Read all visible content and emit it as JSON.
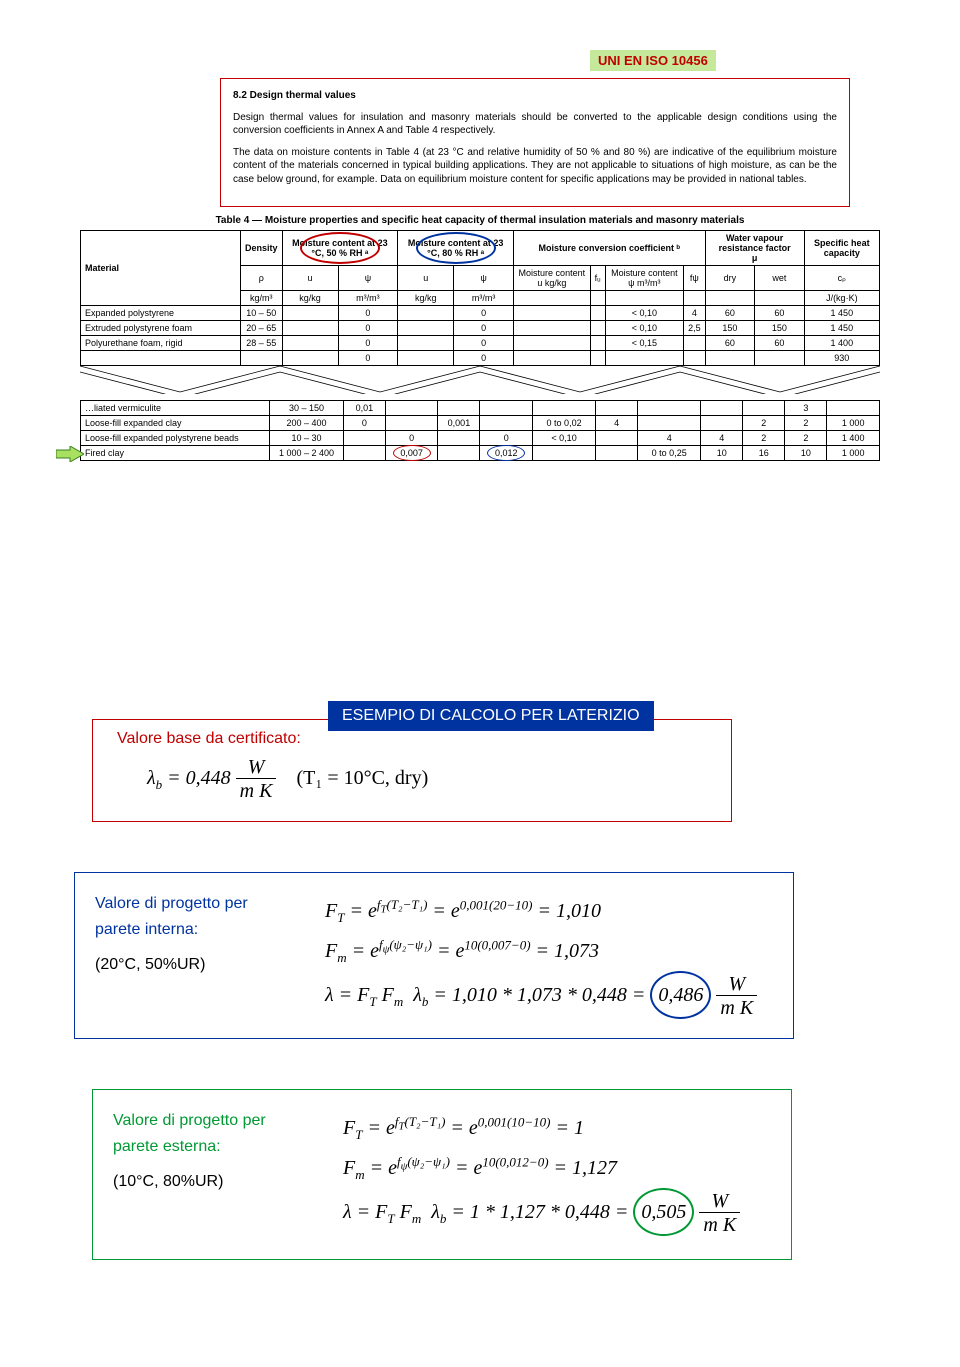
{
  "badge": "UNI EN ISO 10456",
  "section": {
    "heading": "8.2   Design thermal values",
    "p1": "Design thermal values for insulation and masonry materials should be converted to the applicable design conditions using the conversion coefficients in Annex A and Table 4 respectively.",
    "p2": "The data on moisture contents in Table 4 (at 23 °C and relative humidity of 50 % and 80 %) are indicative of the equilibrium moisture content of the materials concerned in typical building applications. They are not applicable to situations of high moisture, as can be the case below ground, for example. Data on equilibrium moisture content for specific applications may be provided in national tables."
  },
  "table4_title": "Table 4 — Moisture properties and specific heat capacity of thermal insulation materials and masonry materials",
  "th": {
    "material": "Material",
    "density": "Density",
    "m50": "Moisture content at 23 °C, 50 % RH ᵃ",
    "m80": "Moisture content at 23 °C, 80 % RH ᵃ",
    "mcc": "Moisture conversion coefficient ᵇ",
    "wvrf": "Water vapour resistance factor",
    "mu": "μ",
    "shc": "Specific heat capacity",
    "rho": "ρ",
    "rho_u": "kg/m³",
    "u": "u",
    "u_u": "kg/kg",
    "psi": "ψ",
    "psi_u": "m³/m³",
    "mcu": "Moisture content u kg/kg",
    "fu": "fᵤ",
    "mcpsi": "Moisture content ψ m³/m³",
    "fp": "fψ",
    "dry": "dry",
    "wet": "wet",
    "cp": "cₚ",
    "cp_u": "J/(kg·K)"
  },
  "rows1": [
    {
      "mat": "Expanded polystyrene",
      "den": "10 – 50",
      "u": "",
      "psi": "0",
      "u2": "",
      "psi2": "0",
      "mcu": "",
      "fu": "",
      "mcpsi": "< 0,10",
      "fp": "4",
      "dry": "60",
      "wet": "60",
      "cp": "1 450"
    },
    {
      "mat": "Extruded polystyrene foam",
      "den": "20 – 65",
      "u": "",
      "psi": "0",
      "u2": "",
      "psi2": "0",
      "mcu": "",
      "fu": "",
      "mcpsi": "< 0,10",
      "fp": "2,5",
      "dry": "150",
      "wet": "150",
      "cp": "1 450"
    },
    {
      "mat": "Polyurethane foam, rigid",
      "den": "28 – 55",
      "u": "",
      "psi": "0",
      "u2": "",
      "psi2": "0",
      "mcu": "",
      "fu": "",
      "mcpsi": "< 0,15",
      "fp": "",
      "dry": "60",
      "wet": "60",
      "cp": "1 400"
    },
    {
      "mat": "",
      "den": "",
      "u": "",
      "psi": "0",
      "u2": "",
      "psi2": "0",
      "mcu": "",
      "fu": "",
      "mcpsi": "",
      "fp": "",
      "dry": "",
      "wet": "",
      "cp": "930"
    }
  ],
  "rows2": [
    {
      "mat": "…liated vermiculite",
      "den": "30 – 150",
      "u": "0,01",
      "psi": "",
      "u2": "",
      "psi2": "",
      "mcu": "",
      "fu": "",
      "mcpsi": "",
      "fp": "",
      "dry": "",
      "wet": "3",
      "cp": ""
    },
    {
      "mat": "Loose-fill expanded clay",
      "den": "200 – 400",
      "u": "0",
      "psi": "",
      "u2": "0,001",
      "psi2": "",
      "mcu": "0 to 0,02",
      "fu": "4",
      "mcpsi": "",
      "fp": "",
      "dry": "2",
      "wet": "2",
      "cp": "1 000"
    },
    {
      "mat": "Loose-fill expanded polystyrene beads",
      "den": "10 – 30",
      "u": "",
      "psi": "0",
      "u2": "",
      "psi2": "0",
      "mcu": "< 0,10",
      "fu": "",
      "mcpsi": "4",
      "fp": "4",
      "dry": "2",
      "wet": "2",
      "cp": "1 400"
    },
    {
      "mat": "Fired clay",
      "den": "1 000 – 2 400",
      "u": "",
      "psi": "0,007",
      "u2": "",
      "psi2": "0,012",
      "mcu": "",
      "fu": "",
      "mcpsi": "0 to 0,25",
      "fp": "10",
      "dry": "16",
      "wet": "10",
      "cp": "1 000",
      "hl_psi": "red",
      "hl_psi2": "blue"
    }
  ],
  "calc": {
    "banner": "ESEMPIO DI CALCOLO PER LATERIZIO",
    "base": {
      "title": "Valore base da certificato:",
      "lambda_b": "0,448",
      "unit_num": "W",
      "unit_den": "m K",
      "cond": "(T₁ = 10°C, dry)"
    },
    "interna": {
      "title1": "Valore di progetto per",
      "title2": "parete interna:",
      "cond": "(20°C, 50%UR)",
      "ft": "Fₜ = e^{fₜ(T₂−T₁)} = e^{0,001(20−10)} = 1,010",
      "fm": "Fₘ = e^{fψ(ψ₂−ψ₁)} = e^{10(0,007−0)} = 1,073",
      "lambda_pre": "λ = Fₜ Fₘ  λ_b = 1,010 * 1,073 * 0,448 =",
      "result": "0,486"
    },
    "esterna": {
      "title1": "Valore di progetto per",
      "title2": "parete esterna:",
      "cond": "(10°C, 80%UR)",
      "ft": "Fₜ = e^{fₜ(T₂−T₁)} = e^{0,001(10−10)} = 1",
      "fm": "Fₘ = e^{fψ(ψ₂−ψ₁)} = e^{10(0,012−0)} = 1,127",
      "lambda_pre": "λ = Fₜ Fₘ  λ_b = 1 * 1,127 * 0,448 =",
      "result": "0,505"
    }
  }
}
